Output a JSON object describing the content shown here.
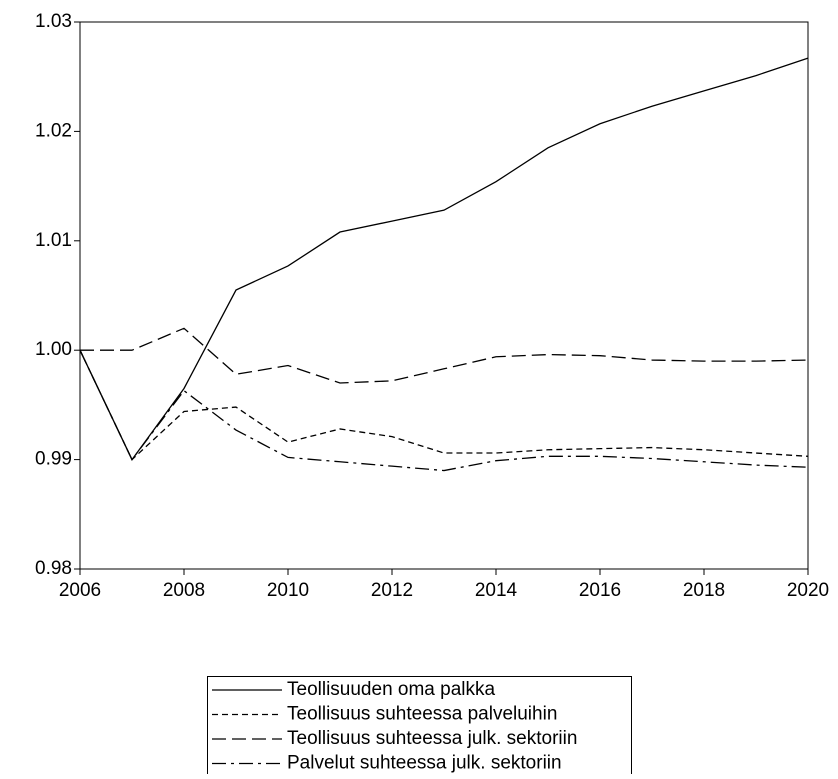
{
  "chart_data": {
    "type": "line",
    "x": [
      2006,
      2007,
      2008,
      2009,
      2010,
      2011,
      2012,
      2013,
      2014,
      2015,
      2016,
      2017,
      2018,
      2019,
      2020
    ],
    "series": [
      {
        "name": "Teollisuuden oma palkka",
        "color": "#000000",
        "dash": "solid",
        "values": [
          1.0,
          0.99,
          0.9965,
          1.0055,
          1.0077,
          1.0108,
          1.0118,
          1.0128,
          1.0154,
          1.0185,
          1.0207,
          1.0223,
          1.0237,
          1.0251,
          1.0267
        ]
      },
      {
        "name": "Teollisuus suhteessa palveluihin",
        "color": "#000000",
        "dash": "short",
        "values": [
          1.0,
          0.99,
          0.9944,
          0.9948,
          0.9916,
          0.9928,
          0.9921,
          0.9906,
          0.9906,
          0.9909,
          0.991,
          0.9911,
          0.9909,
          0.9906,
          0.9903
        ]
      },
      {
        "name": "Teollisuus suhteessa julk. sektoriin",
        "color": "#000000",
        "dash": "long",
        "values": [
          1.0,
          1.0,
          1.002,
          0.9978,
          0.9986,
          0.997,
          0.9972,
          0.9983,
          0.9994,
          0.9996,
          0.9995,
          0.9991,
          0.999,
          0.999,
          0.9991
        ]
      },
      {
        "name": "Palvelut suhteessa julk. sektoriin",
        "color": "#000000",
        "dash": "dashdot",
        "values": [
          1.0,
          0.99,
          0.9963,
          0.9927,
          0.9902,
          0.9898,
          0.9894,
          0.989,
          0.9899,
          0.9903,
          0.9903,
          0.9901,
          0.9898,
          0.9895,
          0.9893
        ]
      }
    ],
    "xlim": [
      2006,
      2020
    ],
    "xticks": [
      2006,
      2008,
      2010,
      2012,
      2014,
      2016,
      2018,
      2020
    ],
    "ylim": [
      0.98,
      1.03
    ],
    "yticks": [
      {
        "value": 0.98,
        "label": "0.98"
      },
      {
        "value": 0.99,
        "label": "0.99"
      },
      {
        "value": 1.0,
        "label": "1.00"
      },
      1.01,
      1.02,
      1.03
    ],
    "legend": "bottom"
  }
}
